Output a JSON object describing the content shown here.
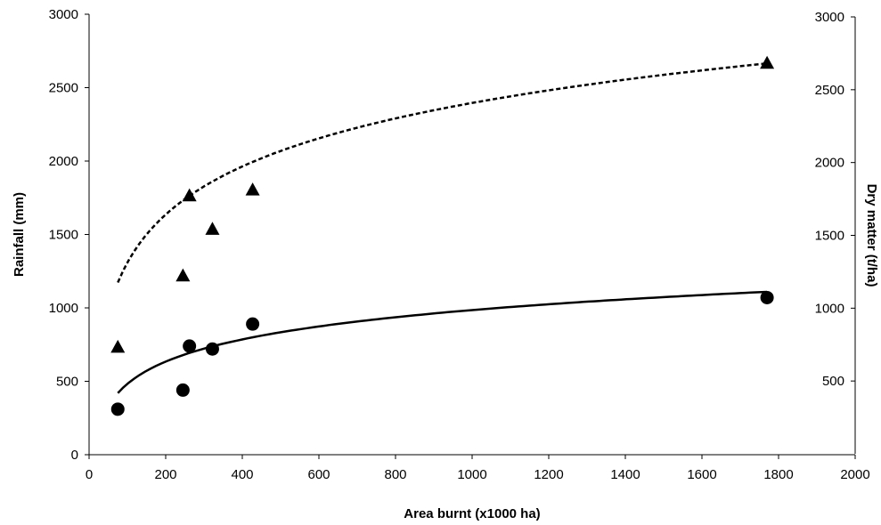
{
  "chart_data": {
    "type": "scatter",
    "title": "",
    "xlabel": "Area burnt (x1000 ha)",
    "ylabel": "Rainfall (mm)",
    "y2label": "Dry matter (t/ha)",
    "xlim": [
      0,
      2000
    ],
    "ylim": [
      0,
      3000
    ],
    "y2lim": [
      0,
      3000
    ],
    "x_ticks": [
      0,
      200,
      400,
      600,
      800,
      1000,
      1200,
      1400,
      1600,
      1800,
      2000
    ],
    "y_ticks": [
      0,
      500,
      1000,
      1500,
      2000,
      2500,
      3000
    ],
    "y2_ticks": [
      500,
      1000,
      1500,
      2000,
      2500,
      3000
    ],
    "grid": false,
    "legend": "none",
    "series": [
      {
        "marker": "triangle",
        "axis": "y2",
        "x": [
          75,
          245,
          262,
          322,
          427,
          1770
        ],
        "y": [
          730,
          1220,
          1770,
          1540,
          1810,
          2680
        ]
      },
      {
        "marker": "circle",
        "axis": "y",
        "x": [
          75,
          245,
          262,
          322,
          427,
          1770
        ],
        "y": [
          310,
          440,
          740,
          720,
          890,
          1070
        ]
      }
    ],
    "trendlines": [
      {
        "series": 0,
        "style": "dashed",
        "fit": "logarithmic",
        "a": -879,
        "b": 476
      },
      {
        "series": 1,
        "style": "solid",
        "fit": "logarithmic",
        "a": -521,
        "b": 218
      }
    ]
  }
}
